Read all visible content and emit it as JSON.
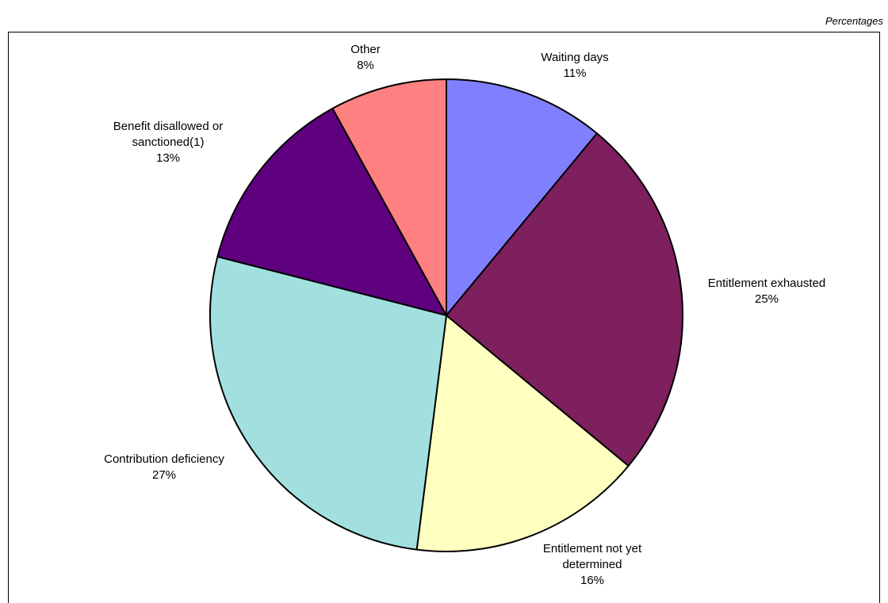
{
  "header": {
    "unit_label": "Percentages"
  },
  "chart_data": {
    "type": "pie",
    "slices": [
      {
        "name": "Waiting days",
        "label_lines": [
          "Waiting days",
          "11%"
        ],
        "value": 11,
        "color": "#8080ff"
      },
      {
        "name": "Entitlement exhausted",
        "label_lines": [
          "Entitlement exhausted",
          "25%"
        ],
        "value": 25,
        "color": "#7e1f5e"
      },
      {
        "name": "Entitlement not yet determined",
        "label_lines": [
          "Entitlement not yet",
          "determined",
          "16%"
        ],
        "value": 16,
        "color": "#ffffc0"
      },
      {
        "name": "Contribution deficiency",
        "label_lines": [
          "Contribution deficiency",
          "27%"
        ],
        "value": 27,
        "color": "#a2e0e0"
      },
      {
        "name": "Benefit disallowed or sanctioned(1)",
        "label_lines": [
          "Benefit disallowed or",
          "sanctioned(1)",
          "13%"
        ],
        "value": 13,
        "color": "#5f007f"
      },
      {
        "name": "Other",
        "label_lines": [
          "Other",
          "8%"
        ],
        "value": 8,
        "color": "#ff8080"
      }
    ]
  }
}
